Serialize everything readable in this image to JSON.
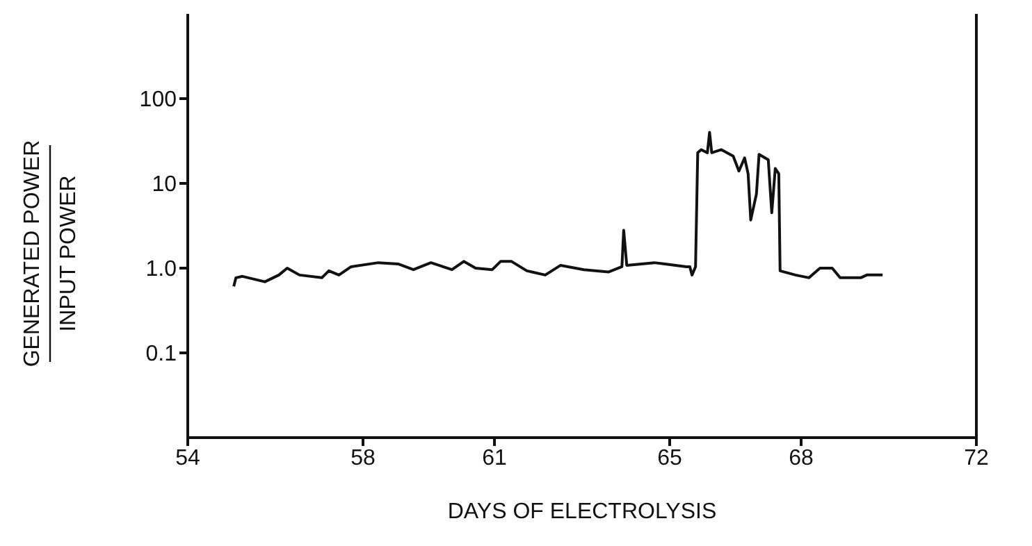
{
  "chart_data": {
    "type": "line",
    "xlabel": "DAYS OF ELECTROLYSIS",
    "ylabel": "GENERATED POWER\nINPUT POWER",
    "log": "y",
    "marker": "none",
    "line_style": "solid",
    "xlim": [
      54,
      72
    ],
    "xticks": [
      54,
      58,
      61,
      65,
      68,
      72
    ],
    "ylim": [
      0.01,
      1000
    ],
    "yticks": [
      {
        "value": 0.1,
        "label": "0.1"
      },
      {
        "value": 1,
        "label": "1.0"
      },
      {
        "value": 10,
        "label": "10"
      },
      {
        "value": 100,
        "label": "100"
      }
    ],
    "x": [
      55.05,
      55.1,
      55.25,
      55.76,
      56.08,
      56.27,
      56.55,
      57.06,
      57.22,
      57.45,
      57.73,
      58.35,
      58.8,
      59.15,
      59.55,
      60.03,
      60.3,
      60.57,
      60.95,
      61.14,
      61.39,
      61.74,
      62.16,
      62.51,
      63.04,
      63.6,
      63.91,
      63.95,
      64.02,
      64.65,
      64.89,
      65.38,
      65.46,
      65.51,
      65.59,
      65.64,
      65.72,
      65.86,
      65.91,
      65.96,
      66.18,
      66.45,
      66.58,
      66.71,
      66.79,
      66.85,
      66.98,
      67.04,
      67.25,
      67.33,
      67.41,
      67.49,
      67.52,
      67.87,
      68.18,
      68.43,
      68.71,
      68.89,
      69.36,
      69.5,
      69.86
    ],
    "series": [
      {
        "color": "#111111",
        "values": [
          0.61,
          0.77,
          0.8,
          0.69,
          0.83,
          1.0,
          0.83,
          0.77,
          0.93,
          0.83,
          1.04,
          1.16,
          1.12,
          0.96,
          1.16,
          0.96,
          1.2,
          1.0,
          0.96,
          1.2,
          1.2,
          0.93,
          0.83,
          1.08,
          0.96,
          0.9,
          1.04,
          2.8,
          1.08,
          1.16,
          1.12,
          1.04,
          1.04,
          0.83,
          1.04,
          23,
          25,
          23,
          40,
          23,
          25,
          21,
          14,
          20,
          13,
          3.7,
          7.5,
          22,
          19,
          4.5,
          15,
          13,
          0.93,
          0.83,
          0.77,
          1.0,
          1.0,
          0.77,
          0.77,
          0.83,
          0.83
        ]
      }
    ]
  }
}
